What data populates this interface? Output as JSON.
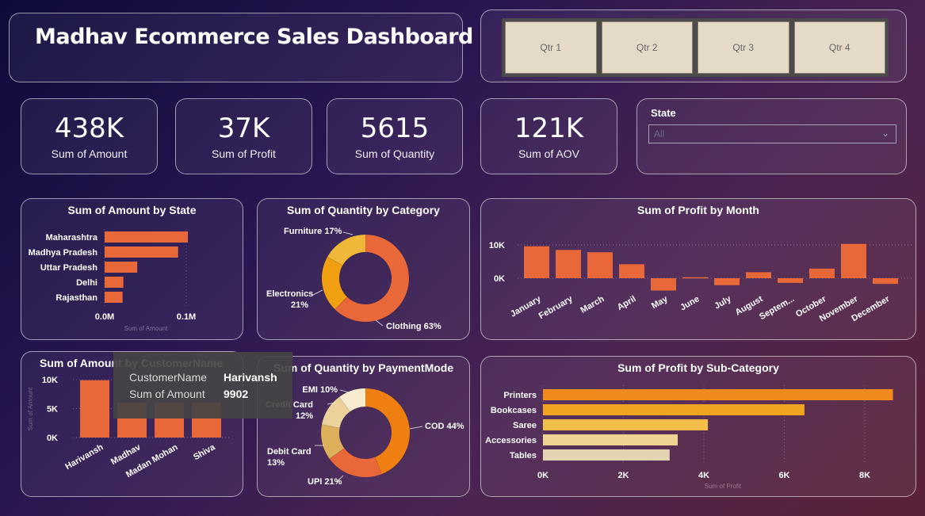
{
  "header": {
    "title": "Madhav Ecommerce Sales Dashboard"
  },
  "slicer": {
    "quarters": [
      "Qtr 1",
      "Qtr 2",
      "Qtr 3",
      "Qtr 4"
    ]
  },
  "kpis": [
    {
      "value": "438K",
      "label": "Sum of Amount"
    },
    {
      "value": "37K",
      "label": "Sum of Profit"
    },
    {
      "value": "5615",
      "label": "Sum of Quantity"
    },
    {
      "value": "121K",
      "label": "Sum of AOV"
    }
  ],
  "state_filter": {
    "label": "State",
    "value": "All"
  },
  "tooltip": {
    "k1": "CustomerName",
    "v1": "Harivansh",
    "k2": "Sum of Amount",
    "v2": "9902"
  },
  "colors": {
    "orange": "#e8683a",
    "bar_orange": "#f08a1c"
  },
  "chart_data": [
    {
      "id": "state",
      "type": "bar",
      "orientation": "horizontal",
      "title": "Sum of Amount by State",
      "xlabel": "Sum of Amount",
      "categories": [
        "Maharashtra",
        "Madhya Pradesh",
        "Uttar Pradesh",
        "Delhi",
        "Rajasthan"
      ],
      "values": [
        102000,
        90000,
        40000,
        23000,
        22000
      ],
      "xticks": [
        "0.0M",
        "0.1M"
      ],
      "xlim": [
        0,
        0.1
      ]
    },
    {
      "id": "category",
      "type": "pie",
      "donut": true,
      "title": "Sum of Quantity by Category",
      "labels": [
        "Clothing 63%",
        "Electronics 21%",
        "Furniture 17%"
      ],
      "values": [
        63,
        21,
        17
      ],
      "colors": [
        "#e8683a",
        "#f0a010",
        "#f0b838"
      ]
    },
    {
      "id": "month",
      "type": "bar",
      "title": "Sum of Profit by Month",
      "categories": [
        "January",
        "February",
        "March",
        "April",
        "May",
        "June",
        "July",
        "August",
        "Septem...",
        "October",
        "November",
        "December"
      ],
      "values": [
        9600,
        8500,
        7800,
        4200,
        -3700,
        300,
        -2100,
        1800,
        -1400,
        2900,
        10300,
        -1700
      ],
      "yticks": [
        "10K",
        "0K"
      ],
      "ylim": [
        -5000,
        10000
      ]
    },
    {
      "id": "customer",
      "type": "bar",
      "title": "Sum of Amount by CustomerName",
      "ylabel": "Sum of Amount",
      "categories": [
        "Harivansh",
        "Madhav",
        "Madan Mohan",
        "Shiva"
      ],
      "values": [
        9902,
        6000,
        6000,
        6000
      ],
      "yticks": [
        "10K",
        "5K",
        "0K"
      ],
      "ylim": [
        0,
        10000
      ]
    },
    {
      "id": "payment",
      "type": "pie",
      "donut": true,
      "title": "Sum of Quantity by PaymentMode",
      "labels": [
        "COD 44%",
        "UPI 21%",
        "Debit Card 13%",
        "Credit Card 12%",
        "EMI 10%"
      ],
      "values": [
        44,
        21,
        13,
        12,
        10
      ],
      "colors": [
        "#f07f12",
        "#e8683a",
        "#ddb05c",
        "#ecd29a",
        "#f8ecd0"
      ]
    },
    {
      "id": "subcategory",
      "type": "bar",
      "orientation": "horizontal",
      "title": "Sum of Profit by Sub-Category",
      "xlabel": "Sum of Profit",
      "categories": [
        "Printers",
        "Bookcases",
        "Saree",
        "Accessories",
        "Tables"
      ],
      "values": [
        8700,
        6500,
        4100,
        3350,
        3150
      ],
      "xticks": [
        "0K",
        "2K",
        "4K",
        "6K",
        "8K"
      ],
      "xlim": [
        0,
        9000
      ],
      "colors": [
        "#f08a1c",
        "#f0a520",
        "#f3be4a",
        "#f0d292",
        "#e4d3b0"
      ]
    }
  ]
}
